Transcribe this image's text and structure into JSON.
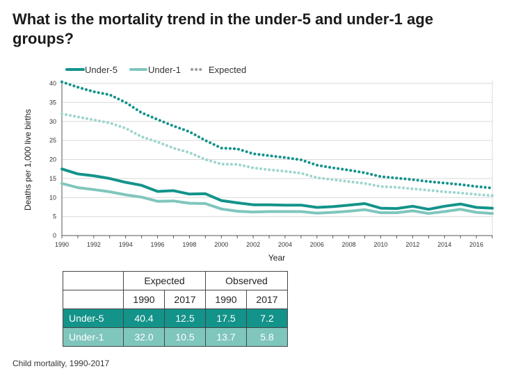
{
  "title": "What is the mortality trend in the under-5 and under-1 age groups?",
  "caption": "Child mortality, 1990-2017",
  "chart_data": {
    "type": "line",
    "title": "What is the mortality trend in the under-5 and under-1 age groups?",
    "xlabel": "Year",
    "ylabel": "Deaths per 1,000 live births",
    "xlim": [
      1990,
      2017
    ],
    "ylim": [
      0,
      40
    ],
    "x_ticks": [
      "1990",
      "1992",
      "1994",
      "1996",
      "1998",
      "2000",
      "2002",
      "2004",
      "2006",
      "2008",
      "2010",
      "2012",
      "2014",
      "2016"
    ],
    "y_ticks": [
      "0",
      "5",
      "10",
      "15",
      "20",
      "25",
      "30",
      "35",
      "40"
    ],
    "grid": true,
    "legend_position": "top-left",
    "x": [
      1990,
      1991,
      1992,
      1993,
      1994,
      1995,
      1996,
      1997,
      1998,
      1999,
      2000,
      2001,
      2002,
      2003,
      2004,
      2005,
      2006,
      2007,
      2008,
      2009,
      2010,
      2011,
      2012,
      2013,
      2014,
      2015,
      2016,
      2017
    ],
    "series": [
      {
        "name": "Under-5",
        "style": "solid-thick",
        "color": "#13938a",
        "values": [
          17.5,
          16.2,
          15.7,
          15.0,
          14.0,
          13.2,
          11.6,
          11.8,
          10.9,
          11.0,
          9.2,
          8.6,
          8.1,
          8.1,
          8.0,
          8.0,
          7.4,
          7.6,
          8.0,
          8.4,
          7.2,
          7.1,
          7.7,
          6.9,
          7.7,
          8.3,
          7.4,
          7.2
        ]
      },
      {
        "name": "Under-1",
        "style": "solid-thick",
        "color": "#7fc6bd",
        "values": [
          13.7,
          12.6,
          12.1,
          11.5,
          10.7,
          10.1,
          9.0,
          9.1,
          8.5,
          8.4,
          7.0,
          6.4,
          6.2,
          6.3,
          6.3,
          6.3,
          5.9,
          6.1,
          6.4,
          6.8,
          6.0,
          6.0,
          6.5,
          5.8,
          6.3,
          6.9,
          6.1,
          5.8
        ]
      },
      {
        "name": "Expected",
        "style": "dotted",
        "color": "#13938a",
        "values": [
          40.4,
          39.0,
          37.8,
          37.0,
          35.0,
          32.3,
          30.5,
          28.8,
          27.3,
          25.0,
          23.0,
          22.8,
          21.5,
          21.0,
          20.5,
          19.9,
          18.5,
          17.8,
          17.2,
          16.5,
          15.5,
          15.1,
          14.7,
          14.2,
          13.8,
          13.4,
          12.9,
          12.5
        ]
      },
      {
        "name": "",
        "style": "dotted",
        "color": "#9fd5ce",
        "values": [
          32.0,
          31.2,
          30.4,
          29.6,
          28.2,
          26.0,
          24.6,
          23.0,
          21.8,
          20.0,
          18.8,
          18.7,
          17.8,
          17.3,
          16.9,
          16.4,
          15.2,
          14.7,
          14.2,
          13.7,
          12.9,
          12.7,
          12.3,
          11.9,
          11.5,
          11.2,
          10.8,
          10.5
        ]
      }
    ]
  },
  "colors": {
    "under5": "#13938a",
    "under1": "#7fc6bd",
    "expected_under1": "#9fd5ce"
  },
  "table": {
    "group_headers": [
      "Expected",
      "Observed"
    ],
    "year_headers": [
      "1990",
      "2017",
      "1990",
      "2017"
    ],
    "rows": [
      {
        "label": "Under-5",
        "values": [
          "40.4",
          "12.5",
          "17.5",
          "7.2"
        ]
      },
      {
        "label": "Under-1",
        "values": [
          "32.0",
          "10.5",
          "13.7",
          "5.8"
        ]
      }
    ]
  }
}
